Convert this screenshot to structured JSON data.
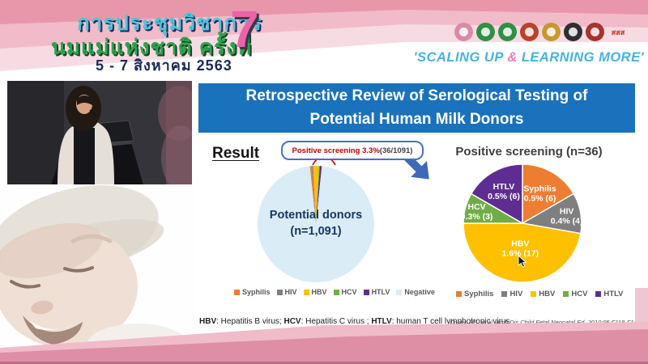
{
  "header": {
    "conference_title_line1": "การประชุมวิชาการ",
    "conference_title_line2": "นมแม่แห่งชาติ ครั้งที่",
    "conference_dates": "5 - 7 สิงหาคม 2563",
    "edition_number": "7",
    "slogan_part1": "'SCALING UP ",
    "slogan_amp": "&",
    "slogan_part2": " LEARNING MORE'",
    "logos": [
      {
        "name": "breastfeeding-foundation",
        "color": "#D98BA6"
      },
      {
        "name": "ministry-public-health",
        "color": "#2F8F46"
      },
      {
        "name": "health-department",
        "color": "#2F8F46"
      },
      {
        "name": "royal-emblem-red-gold",
        "color": "#B8432F"
      },
      {
        "name": "royal-emblem-gold",
        "color": "#C9972F"
      },
      {
        "name": "pediatric-society",
        "color": "#2F2F33"
      },
      {
        "name": "nursing-council",
        "color": "#A8322E"
      },
      {
        "name": "thai-health-foundation",
        "color": "#C2302A",
        "text": "สสส"
      }
    ]
  },
  "slide": {
    "title": "Retrospective Review of Serological Testing of Potential Human Milk Donors",
    "result_label": "Result",
    "callout_highlight": "Positive screening 3.3%",
    "callout_detail": " (36/1091)",
    "footnote_parts": [
      {
        "abbr": "HBV",
        "def": ": Hepatitis B virus; "
      },
      {
        "abbr": "HCV",
        "def": ": Hepatitis C virus ; "
      },
      {
        "abbr": "HTLV",
        "def": ": human T cell lymphotropic virus"
      }
    ],
    "citation": "Cohen RS, et al. Arch Dis Child Fetal Neonatal Ed. 2010;95:F118-F120."
  },
  "chart_data": [
    {
      "type": "pie",
      "title": "Potential donors (n=1,091)",
      "center_label_line1": "Potential donors",
      "center_label_line2": "(n=1,091)",
      "total": 1091,
      "start_angle": -6,
      "show_slice_labels": false,
      "legend_position": "bottom",
      "slices": [
        {
          "label": "Syphilis",
          "value": 6,
          "color": "#ED7D31"
        },
        {
          "label": "HIV",
          "value": 4,
          "color": "#7F7F7F"
        },
        {
          "label": "HBV",
          "value": 17,
          "color": "#FFC000"
        },
        {
          "label": "HCV",
          "value": 3,
          "color": "#70AD47"
        },
        {
          "label": "HTLV",
          "value": 6,
          "color": "#5E2D91"
        },
        {
          "label": "Negative",
          "value": 1055,
          "color": "#DAECF6"
        }
      ]
    },
    {
      "type": "pie",
      "title": "Positive screening (n=36)",
      "total": 36,
      "start_angle": 0,
      "show_slice_labels": true,
      "legend_position": "bottom",
      "slices": [
        {
          "label": "Syphilis",
          "value": 6,
          "pct": "0.5%",
          "color": "#ED7D31"
        },
        {
          "label": "HIV",
          "value": 4,
          "pct": "0.4%",
          "color": "#7F7F7F"
        },
        {
          "label": "HBV",
          "value": 17,
          "pct": "1.6%",
          "color": "#FFC000"
        },
        {
          "label": "HCV",
          "value": 3,
          "pct": "0.3%",
          "color": "#70AD47"
        },
        {
          "label": "HTLV",
          "value": 6,
          "pct": "0.5%",
          "color": "#5E2D91"
        }
      ]
    }
  ]
}
